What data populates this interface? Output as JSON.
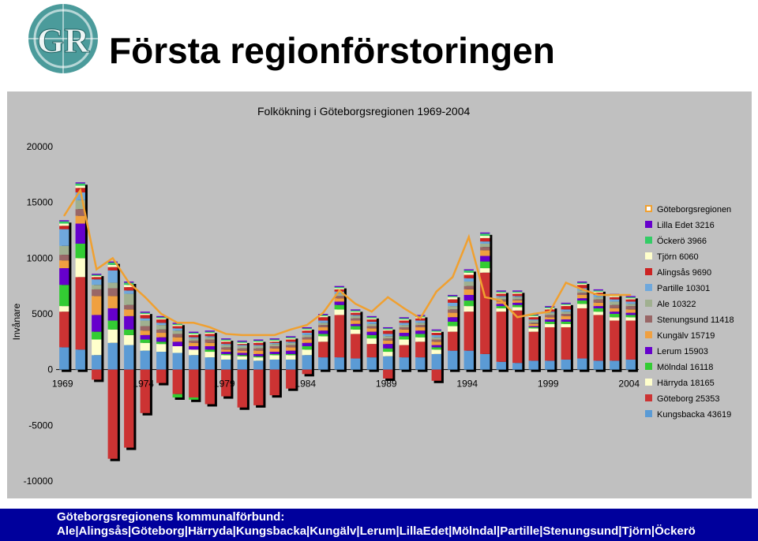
{
  "slide": {
    "title": "Första regionförstoringen",
    "logo_letters": "GR"
  },
  "footer": {
    "line1": "Göteborgsregionens kommunalförbund:",
    "line2": "Ale|Alingsås|Göteborg|Härryda|Kungsbacka|Kungälv|Lerum|LillaEdet|Mölndal|Partille|Stenungsund|Tjörn|Öckerö"
  },
  "colors": {
    "panel": "#c0c0c0",
    "footer": "#00009c",
    "total_line": "#f0a030"
  },
  "chart_data": {
    "type": "bar",
    "stacked": true,
    "title": "Folkökning i Göteborgsregionen 1969-2004",
    "ylabel": "Invånare",
    "xlabel": "",
    "ylim": [
      -10000,
      20000
    ],
    "yticks": [
      20000,
      15000,
      10000,
      5000,
      0,
      -5000,
      -10000
    ],
    "x_tick_labels": [
      "1969",
      "1974",
      "1979",
      "1984",
      "1989",
      "1994",
      "1999",
      "2004"
    ],
    "grid": false,
    "legend_position": "right",
    "x": [
      1969,
      1970,
      1971,
      1972,
      1973,
      1974,
      1975,
      1976,
      1977,
      1978,
      1979,
      1980,
      1981,
      1982,
      1983,
      1984,
      1985,
      1986,
      1987,
      1988,
      1989,
      1990,
      1991,
      1992,
      1993,
      1994,
      1995,
      1996,
      1997,
      1998,
      1999,
      2000,
      2001,
      2002,
      2003,
      2004
    ],
    "series": [
      {
        "name": "Kungsbacka 43619",
        "color": "#5b9bd5",
        "values": [
          2000,
          1800,
          1300,
          2400,
          2200,
          1700,
          1600,
          1500,
          1300,
          1100,
          900,
          900,
          800,
          900,
          900,
          1300,
          1100,
          1100,
          1000,
          1100,
          1200,
          1100,
          1100,
          1400,
          1700,
          1700,
          1400,
          700,
          600,
          800,
          800,
          900,
          1000,
          800,
          800,
          900
        ]
      },
      {
        "name": "Göteborg 25353",
        "color": "#cc3333",
        "values": [
          3200,
          6500,
          -900,
          -8000,
          -7000,
          -3900,
          -1200,
          -2200,
          -2500,
          -3100,
          -2400,
          -3400,
          -3200,
          -2300,
          -1700,
          -400,
          1400,
          3800,
          2200,
          1200,
          -800,
          1100,
          1400,
          -1000,
          1700,
          3500,
          7300,
          4500,
          4700,
          2600,
          3000,
          2900,
          4500,
          4100,
          3600,
          3500
        ]
      },
      {
        "name": "Härryda 18165",
        "color": "#ffffcc",
        "values": [
          500,
          1700,
          1400,
          1200,
          900,
          700,
          700,
          600,
          500,
          500,
          400,
          300,
          300,
          400,
          400,
          500,
          500,
          500,
          400,
          500,
          400,
          500,
          400,
          400,
          500,
          500,
          400,
          300,
          300,
          300,
          300,
          300,
          400,
          300,
          300,
          300
        ]
      },
      {
        "name": "Mölndal 16118",
        "color": "#33cc33",
        "values": [
          1900,
          1300,
          700,
          800,
          500,
          300,
          200,
          -300,
          -200,
          200,
          100,
          100,
          100,
          100,
          100,
          300,
          200,
          400,
          300,
          300,
          300,
          300,
          300,
          200,
          400,
          500,
          600,
          200,
          200,
          100,
          200,
          200,
          300,
          300,
          300,
          200
        ]
      },
      {
        "name": "Lerum 15903",
        "color": "#6600cc",
        "values": [
          1500,
          1800,
          1500,
          1100,
          1200,
          400,
          400,
          400,
          300,
          300,
          200,
          200,
          200,
          200,
          300,
          300,
          300,
          300,
          200,
          300,
          400,
          300,
          300,
          200,
          400,
          500,
          500,
          200,
          200,
          100,
          200,
          200,
          200,
          200,
          200,
          200
        ]
      },
      {
        "name": "Kungälv 15719",
        "color": "#f0a040",
        "values": [
          700,
          700,
          1700,
          1100,
          600,
          400,
          400,
          400,
          300,
          300,
          200,
          200,
          300,
          300,
          300,
          300,
          300,
          300,
          300,
          300,
          300,
          300,
          300,
          300,
          400,
          500,
          500,
          200,
          200,
          200,
          200,
          300,
          300,
          300,
          300,
          300
        ]
      },
      {
        "name": "Stenungsund 11418",
        "color": "#996666",
        "values": [
          500,
          600,
          600,
          700,
          400,
          400,
          300,
          300,
          200,
          300,
          200,
          200,
          200,
          200,
          200,
          200,
          200,
          200,
          200,
          200,
          200,
          200,
          200,
          200,
          300,
          300,
          300,
          200,
          100,
          100,
          200,
          200,
          200,
          300,
          300,
          300
        ]
      },
      {
        "name": "Ale 10322",
        "color": "#a0b090",
        "values": [
          800,
          800,
          400,
          500,
          1000,
          500,
          400,
          300,
          200,
          200,
          200,
          200,
          200,
          200,
          200,
          200,
          200,
          200,
          200,
          200,
          200,
          200,
          200,
          200,
          300,
          400,
          300,
          200,
          200,
          200,
          200,
          200,
          200,
          200,
          300,
          200
        ]
      },
      {
        "name": "Partille 10301",
        "color": "#6fa8dc",
        "values": [
          1500,
          700,
          500,
          1100,
          300,
          200,
          200,
          200,
          100,
          100,
          100,
          100,
          100,
          100,
          100,
          200,
          200,
          200,
          100,
          200,
          200,
          200,
          200,
          200,
          300,
          300,
          200,
          100,
          100,
          100,
          100,
          200,
          200,
          200,
          200,
          200
        ]
      },
      {
        "name": "Alingsås 9690",
        "color": "#cc2222",
        "values": [
          300,
          400,
          200,
          300,
          300,
          300,
          300,
          200,
          200,
          200,
          200,
          100,
          200,
          100,
          200,
          200,
          300,
          200,
          200,
          200,
          300,
          200,
          200,
          200,
          300,
          300,
          300,
          200,
          200,
          200,
          200,
          300,
          300,
          200,
          200,
          200
        ]
      },
      {
        "name": "Tjörn 6060",
        "color": "#ffffcc",
        "values": [
          200,
          200,
          100,
          200,
          200,
          100,
          100,
          100,
          100,
          100,
          100,
          100,
          100,
          100,
          100,
          100,
          100,
          100,
          100,
          100,
          100,
          100,
          100,
          100,
          200,
          200,
          200,
          100,
          100,
          100,
          100,
          100,
          100,
          100,
          100,
          100
        ]
      },
      {
        "name": "Öckerö 3966",
        "color": "#33cc66",
        "values": [
          200,
          200,
          100,
          200,
          200,
          100,
          100,
          100,
          100,
          100,
          100,
          100,
          100,
          100,
          100,
          100,
          100,
          100,
          100,
          100,
          100,
          100,
          100,
          100,
          100,
          200,
          200,
          100,
          100,
          100,
          100,
          100,
          100,
          100,
          100,
          100
        ]
      },
      {
        "name": "Lilla Edet 3216",
        "color": "#6600cc",
        "values": [
          100,
          100,
          100,
          100,
          100,
          100,
          100,
          100,
          100,
          100,
          100,
          100,
          100,
          100,
          100,
          100,
          100,
          100,
          100,
          100,
          100,
          100,
          100,
          100,
          100,
          100,
          100,
          100,
          100,
          100,
          100,
          100,
          100,
          100,
          100,
          100
        ]
      }
    ],
    "total": {
      "name": "Göteborgsregionen",
      "color": "#f0a030",
      "values": [
        13800,
        16100,
        9000,
        10000,
        7800,
        6500,
        5000,
        4200,
        4200,
        3800,
        3200,
        3100,
        3100,
        3100,
        3600,
        4000,
        5100,
        7100,
        5900,
        5200,
        6500,
        5500,
        4600,
        7000,
        8300,
        11900,
        6500,
        6200,
        4700,
        5000,
        5200,
        7800,
        7200,
        6700,
        6700,
        6700
      ]
    },
    "legend_order": [
      "Göteborgsregionen",
      "Lilla Edet 3216",
      "Öckerö 3966",
      "Tjörn 6060",
      "Alingsås 9690",
      "Partille 10301",
      "Ale 10322",
      "Stenungsund 11418",
      "Kungälv 15719",
      "Lerum 15903",
      "Mölndal 16118",
      "Härryda 18165",
      "Göteborg 25353",
      "Kungsbacka 43619"
    ]
  }
}
